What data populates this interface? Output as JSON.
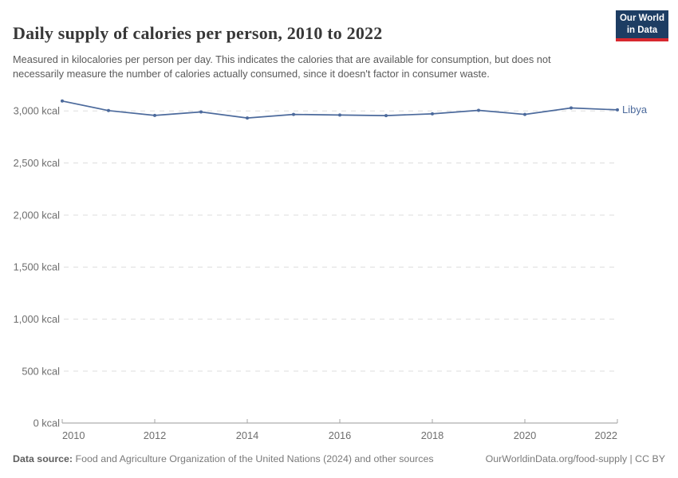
{
  "header": {
    "title": "Daily supply of calories per person, 2010 to 2022",
    "subtitle": "Measured in kilocalories per person per day. This indicates the calories that are available for consumption, but does not necessarily measure the number of calories actually consumed, since it doesn't factor in consumer waste."
  },
  "logo": {
    "line1": "Our World",
    "line2": "in Data",
    "background_color": "#1d3d63",
    "bar_color": "#d7282e"
  },
  "chart_data": {
    "type": "line",
    "title": "Daily supply of calories per person, 2010 to 2022",
    "x": [
      2010,
      2011,
      2012,
      2013,
      2014,
      2015,
      2016,
      2017,
      2018,
      2019,
      2020,
      2021,
      2022
    ],
    "series": [
      {
        "name": "Libya",
        "color": "#4c6a9c",
        "values": [
          3095,
          3003,
          2956,
          2990,
          2932,
          2966,
          2960,
          2955,
          2972,
          3005,
          2966,
          3028,
          3010
        ]
      }
    ],
    "unit": "kcal",
    "ylim": [
      0,
      3200
    ],
    "ytick_values": [
      0,
      500,
      1000,
      1500,
      2000,
      2500,
      3000
    ],
    "ytick_labels": [
      "0 kcal",
      "500 kcal",
      "1,000 kcal",
      "1,500 kcal",
      "2,000 kcal",
      "2,500 kcal",
      "3,000 kcal"
    ],
    "xtick_labels": [
      "2010",
      "2012",
      "2014",
      "2016",
      "2018",
      "2020",
      "2022"
    ],
    "grid": "horizontal dashed",
    "legend": "line-end label"
  },
  "footer": {
    "datasource_label": "Data source:",
    "datasource_text": " Food and Agriculture Organization of the United Nations (2024) and other sources",
    "rights": "OurWorldinData.org/food-supply | CC BY"
  }
}
